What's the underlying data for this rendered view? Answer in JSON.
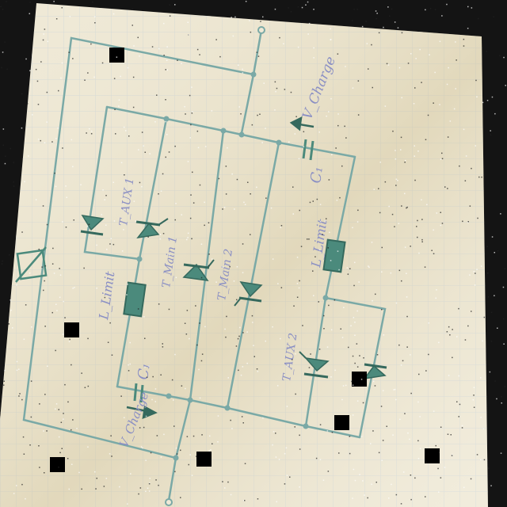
{
  "diagram": {
    "kind": "hand-drawn circuit schematic on grid paper",
    "colors": {
      "background": "#141414",
      "paper": "#efe9d6",
      "wire": "#7aa9a6",
      "component": "#4b8a7c",
      "ink": "#8a8fc4",
      "marker": "#000000"
    },
    "labels": {
      "v_charge": "V_Charge",
      "c_top": "C₁",
      "l_limit_right": "L_Limit",
      "t_main_1": "T_Main 1",
      "t_main_2": "T_Main 2",
      "t_aux_1": "T_AUX 1",
      "t_aux_2": "T_AUX 2",
      "l_limit_left": "L_Limit",
      "c_bottom": "C₁",
      "v_charge_bottom": "V_Charge"
    }
  }
}
